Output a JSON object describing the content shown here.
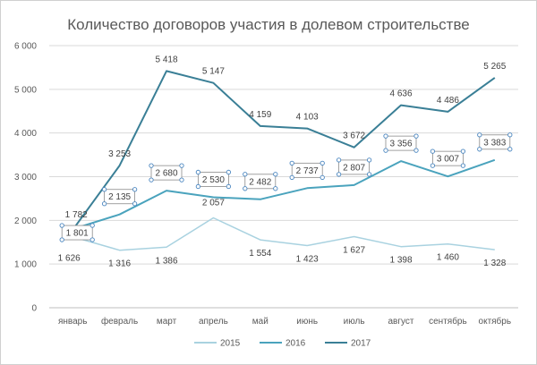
{
  "chart_data": {
    "type": "line",
    "title": "Количество  договоров  участия  в долевом строительстве",
    "categories": [
      "январь",
      "февраль",
      "март",
      "апрель",
      "май",
      "июнь",
      "июль",
      "август",
      "сентябрь",
      "октябрь"
    ],
    "ylim": [
      0,
      6000
    ],
    "yticks": [
      "0",
      "1 000",
      "2 000",
      "3 000",
      "4 000",
      "5 000",
      "6 000"
    ],
    "grid": true,
    "legend_position": "bottom",
    "series": [
      {
        "name": "2015",
        "color": "#a9d2e0",
        "values": [
          1626,
          1316,
          1386,
          2057,
          1554,
          1423,
          1627,
          1398,
          1460,
          1328
        ],
        "labels": [
          "1 626",
          "1 316",
          "1 386",
          "2 057",
          "1 554",
          "1 423",
          "1 627",
          "1 398",
          "1 460",
          "1 328"
        ]
      },
      {
        "name": "2016",
        "color": "#4aa3bd",
        "values": [
          1801,
          2135,
          2680,
          2530,
          2482,
          2737,
          2807,
          3356,
          3007,
          3383
        ],
        "labels": [
          "1 801",
          "2 135",
          "2 680",
          "2 530",
          "2 482",
          "2 737",
          "2 807",
          "3 356",
          "3 007",
          "3 383"
        ]
      },
      {
        "name": "2017",
        "color": "#3a7f96",
        "values": [
          1782,
          3253,
          5418,
          5147,
          4159,
          4103,
          3672,
          4636,
          4486,
          5265
        ],
        "labels": [
          "1 782",
          "3 253",
          "5 418",
          "5 147",
          "4 159",
          "4 103",
          "3 672",
          "4 636",
          "4 486",
          "5 265"
        ]
      }
    ]
  }
}
